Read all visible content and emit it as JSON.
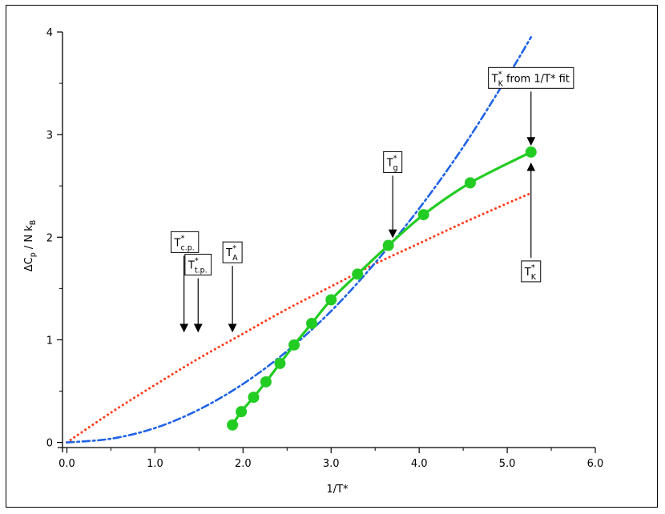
{
  "chart_data": {
    "type": "line",
    "xlabel": "1/T*",
    "ylabel": {
      "main": "ΔC",
      "sub1": "p",
      "mid": " / N k",
      "sub2": "B"
    },
    "xlim": [
      -0.05,
      6.0
    ],
    "ylim": [
      -0.05,
      4.0
    ],
    "xticks": [
      "0.0",
      "1.0",
      "2.0",
      "3.0",
      "4.0",
      "5.0",
      "6.0"
    ],
    "yticks": [
      "0",
      "1",
      "2",
      "3",
      "4"
    ],
    "grid": false,
    "series": [
      {
        "style": "green-markers-with-smooth-line",
        "color": "#22cc22",
        "x": [
          1.88,
          1.98,
          2.12,
          2.26,
          2.42,
          2.58,
          2.78,
          3.0,
          3.3,
          3.65,
          4.05,
          4.58,
          5.27
        ],
        "y": [
          0.17,
          0.3,
          0.44,
          0.59,
          0.77,
          0.95,
          1.16,
          1.39,
          1.64,
          1.92,
          2.22,
          2.53,
          2.83
        ]
      },
      {
        "style": "red-dotted",
        "color": "#ff3a1a",
        "x": [
          0.0,
          0.5,
          1.0,
          1.5,
          2.0,
          2.5,
          3.0,
          3.5,
          4.0,
          4.5,
          5.0,
          5.27
        ],
        "y": [
          0.0,
          0.29,
          0.56,
          0.82,
          1.06,
          1.3,
          1.52,
          1.74,
          1.94,
          2.14,
          2.33,
          2.43
        ]
      },
      {
        "style": "blue-dash-dot",
        "color": "#1f63e6",
        "x": [
          0.0,
          0.5,
          1.0,
          1.5,
          2.0,
          2.5,
          3.0,
          3.5,
          4.0,
          4.5,
          5.0,
          5.27
        ],
        "y": [
          0.0,
          0.036,
          0.14,
          0.32,
          0.57,
          0.89,
          1.28,
          1.75,
          2.28,
          2.88,
          3.56,
          3.95
        ]
      }
    ],
    "annotations": [
      {
        "label": "T",
        "sup": "*",
        "sub": "c.p.",
        "extra": "",
        "arrow_x": 1.33,
        "arrow_from": 1.82,
        "arrow_to": 1.08,
        "direction": "down"
      },
      {
        "label": "T",
        "sup": "*",
        "sub": "t.p.",
        "extra": "",
        "arrow_x": 1.49,
        "arrow_from": 1.6,
        "arrow_to": 1.08,
        "direction": "down"
      },
      {
        "label": "T",
        "sup": "*",
        "sub": "A",
        "extra": "",
        "arrow_x": 1.88,
        "arrow_from": 1.72,
        "arrow_to": 1.08,
        "direction": "down"
      },
      {
        "label": "T",
        "sup": "*",
        "sub": "g",
        "extra": "",
        "arrow_x": 3.7,
        "arrow_from": 2.6,
        "arrow_to": 2.0,
        "direction": "down"
      },
      {
        "label": "T",
        "sup": "*",
        "sub": "K",
        "extra": " from 1/T* fit",
        "arrow_x": 5.27,
        "arrow_from": 3.42,
        "arrow_to": 2.9,
        "direction": "down"
      },
      {
        "label": "T",
        "sup": "*",
        "sub": "K",
        "extra": "",
        "arrow_x": 5.27,
        "arrow_from": 1.8,
        "arrow_to": 2.72,
        "direction": "up"
      }
    ]
  }
}
